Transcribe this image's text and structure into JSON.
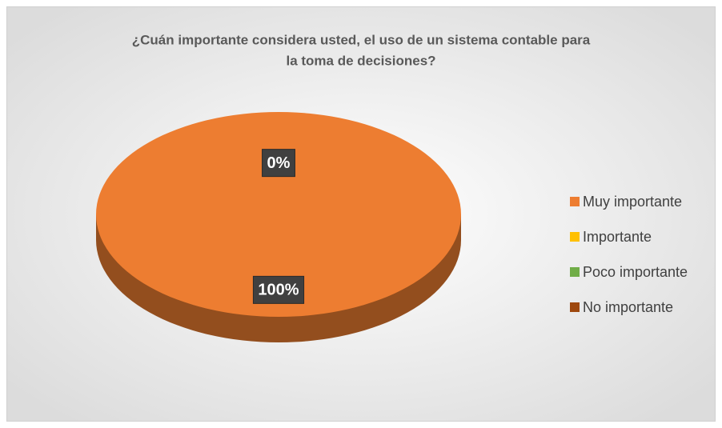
{
  "chart_data": {
    "type": "pie",
    "title": "¿Cuán importante considera usted, el uso de un sistema contable para la toma de decisiones?",
    "title_lines": [
      "¿Cuán importante considera usted, el uso de un sistema contable para",
      "la toma de decisiones?"
    ],
    "categories": [
      "Muy importante",
      "Importante",
      "Poco importante",
      "No importante"
    ],
    "values": [
      100,
      0,
      0,
      0
    ],
    "value_labels": [
      "100%",
      "0%",
      null,
      null
    ],
    "colors": [
      "#ed7d31",
      "#ffc000",
      "#70ad47",
      "#9e480e"
    ],
    "legend": "right"
  }
}
